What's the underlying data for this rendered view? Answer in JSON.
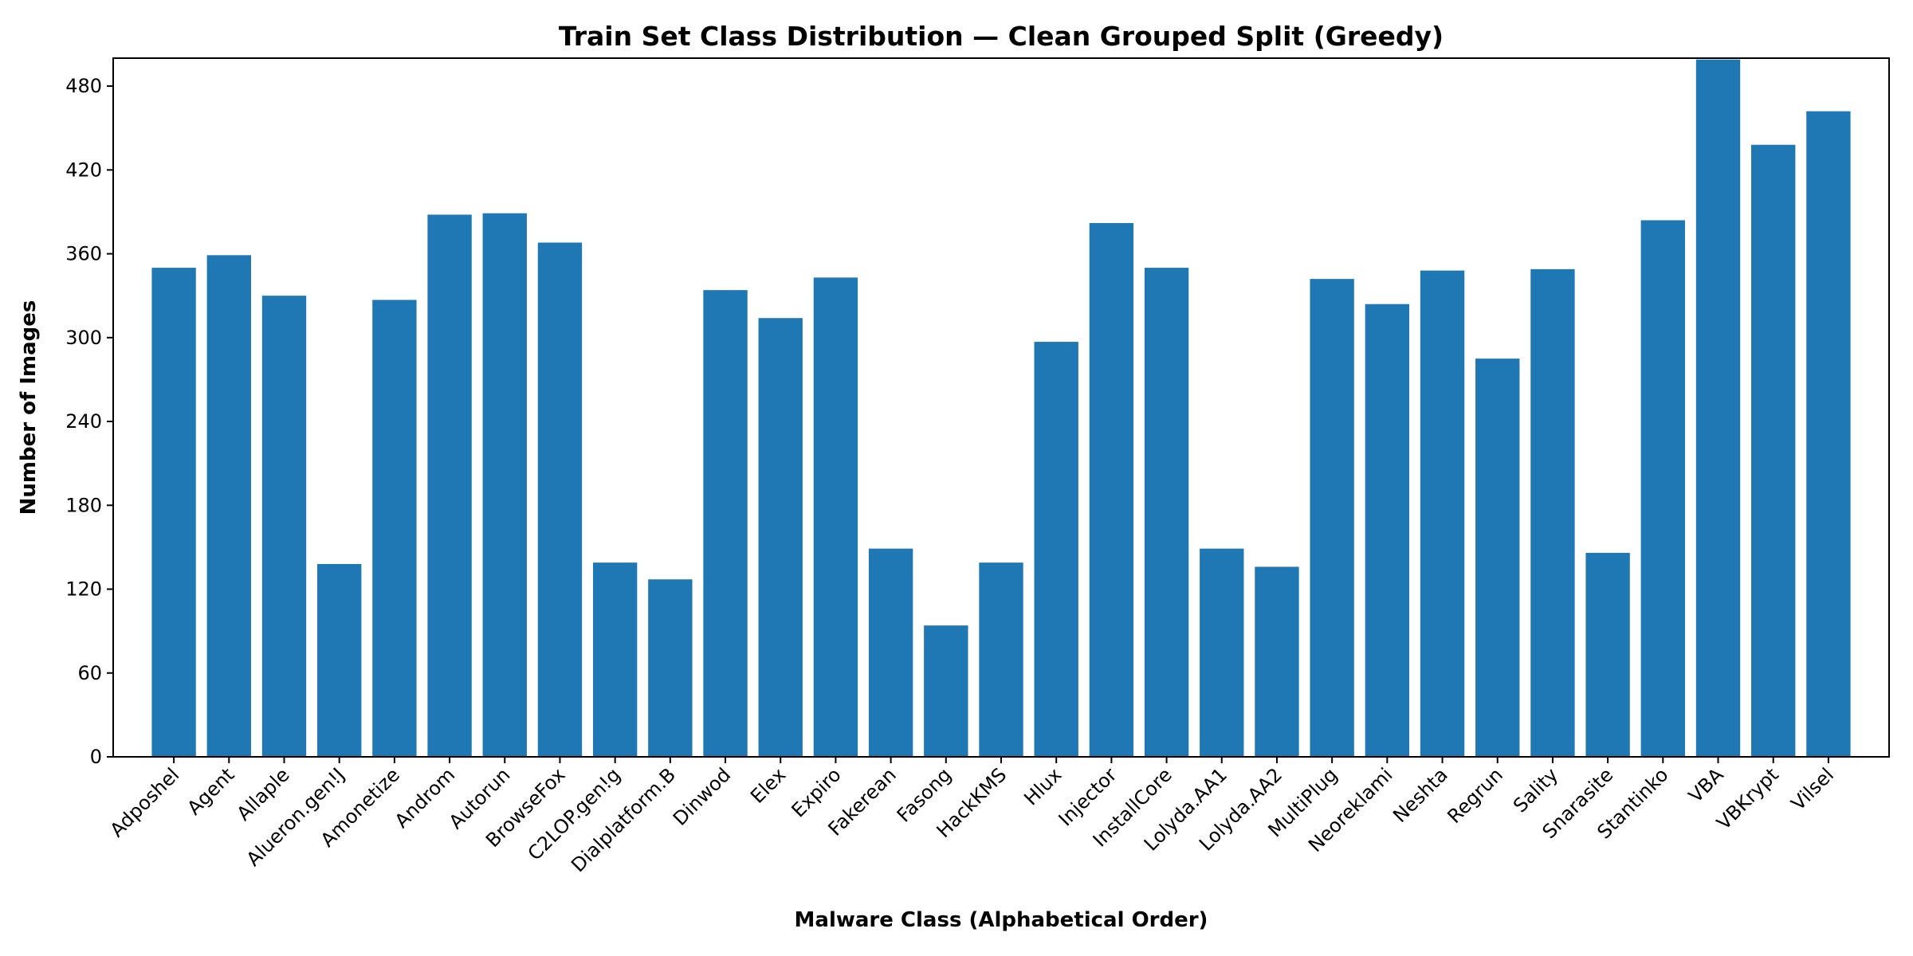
{
  "chart_data": {
    "type": "bar",
    "title": "Train Set Class Distribution — Clean Grouped Split (Greedy)",
    "xlabel": "Malware Class (Alphabetical Order)",
    "ylabel": "Number of Images",
    "ylim": [
      0,
      500
    ],
    "yticks": [
      0,
      60,
      120,
      180,
      240,
      300,
      360,
      420,
      480
    ],
    "grid": false,
    "legend": "none",
    "bar_color": "#1f77b4",
    "categories": [
      "Adposhel",
      "Agent",
      "Allaple",
      "Alueron.gen!J",
      "Amonetize",
      "Androm",
      "Autorun",
      "BrowseFox",
      "C2LOP.gen!g",
      "Dialplatform.B",
      "Dinwod",
      "Elex",
      "Expiro",
      "Fakerean",
      "Fasong",
      "HackKMS",
      "Hlux",
      "Injector",
      "InstallCore",
      "Lolyda.AA1",
      "Lolyda.AA2",
      "MultiPlug",
      "Neoreklami",
      "Neshta",
      "Regrun",
      "Sality",
      "Snarasite",
      "Stantinko",
      "VBA",
      "VBKrypt",
      "Vilsel"
    ],
    "values": [
      350,
      359,
      330,
      138,
      327,
      388,
      389,
      368,
      139,
      127,
      334,
      314,
      343,
      149,
      94,
      139,
      297,
      382,
      350,
      149,
      136,
      342,
      324,
      348,
      285,
      349,
      146,
      384,
      499,
      438,
      462
    ]
  }
}
